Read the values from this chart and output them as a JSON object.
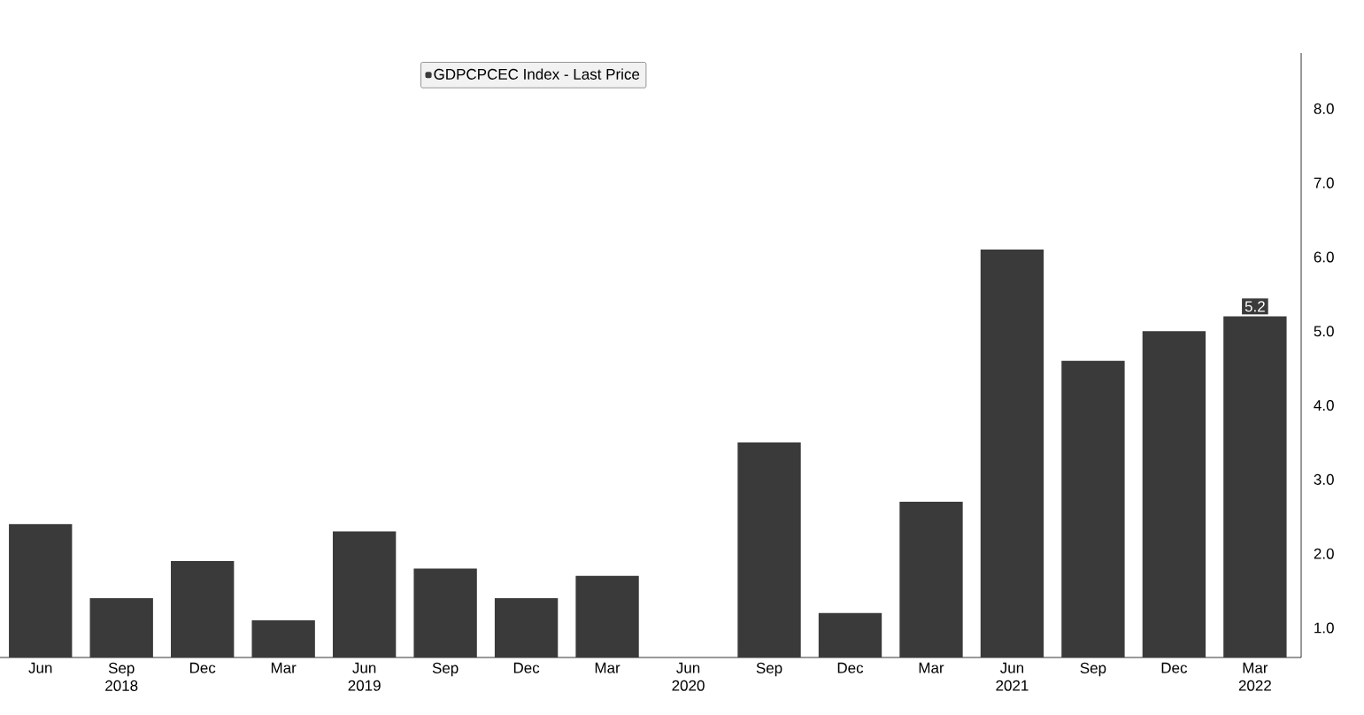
{
  "chart_data": {
    "type": "bar",
    "categories": [
      "Jun",
      "Sep 2018",
      "Dec",
      "Mar",
      "Jun 2019",
      "Sep",
      "Dec",
      "Mar",
      "Jun 2020",
      "Sep",
      "Dec",
      "Mar",
      "Jun 2021",
      "Sep",
      "Dec",
      "Mar 2022"
    ],
    "series": [
      {
        "name": "GDPCPCEC Index - Last Price",
        "color": "#3a3a3a",
        "values": [
          2.4,
          1.4,
          1.9,
          1.1,
          2.3,
          1.8,
          1.4,
          1.7,
          null,
          3.5,
          1.2,
          2.7,
          6.1,
          4.6,
          5.0,
          5.2
        ],
        "value_labels": [
          null,
          null,
          null,
          null,
          null,
          null,
          null,
          null,
          null,
          null,
          null,
          null,
          null,
          null,
          null,
          "5.2"
        ]
      }
    ],
    "ylim": [
      0.6,
      8.75
    ],
    "yticks": [
      {
        "value": 1,
        "label": "1.0"
      },
      {
        "value": 2,
        "label": "2.0"
      },
      {
        "value": 3,
        "label": "3.0"
      },
      {
        "value": 4,
        "label": "4.0"
      },
      {
        "value": 5,
        "label": "5.0"
      },
      {
        "value": 6,
        "label": "6.0"
      },
      {
        "value": 7,
        "label": "7.0"
      },
      {
        "value": 8,
        "label": "8.0"
      }
    ],
    "grid": false,
    "legend": "top"
  }
}
